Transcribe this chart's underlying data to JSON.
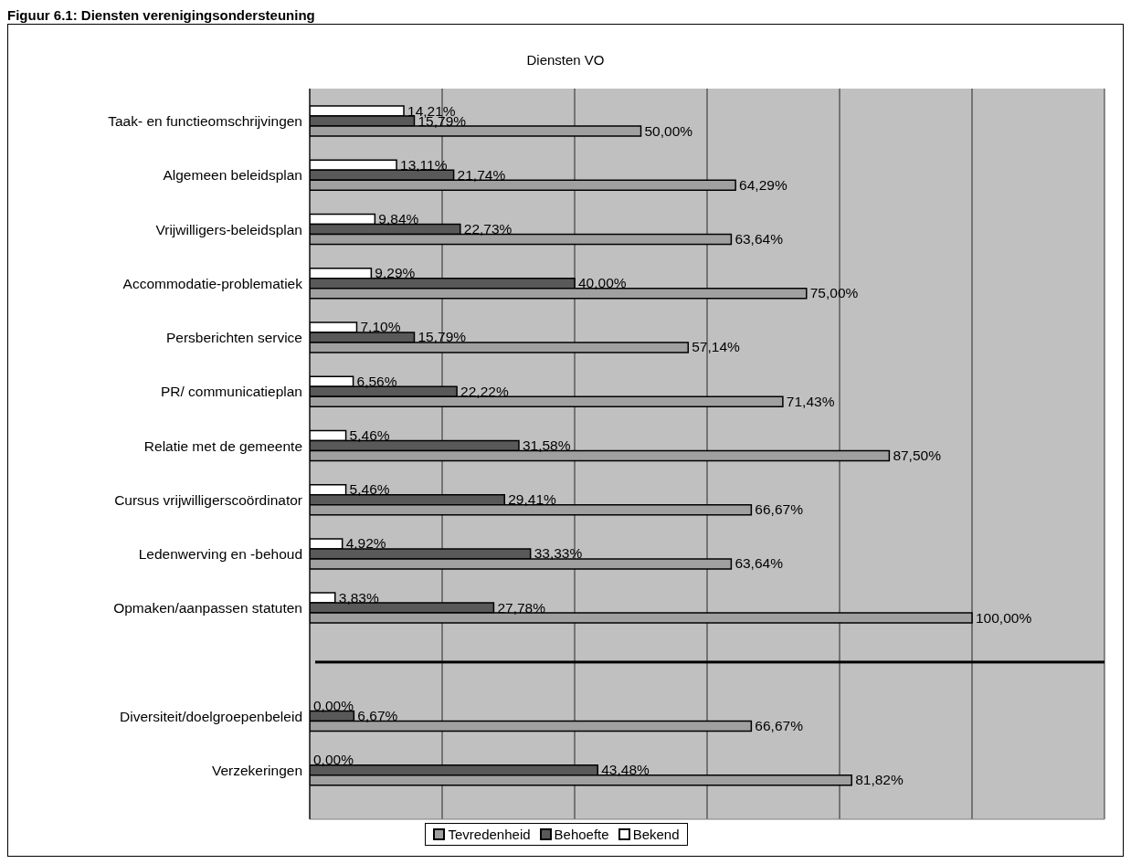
{
  "chart_data": {
    "type": "bar",
    "orientation": "horizontal",
    "title": "Diensten VO",
    "annotations": [
      "Figuur 6.1: Diensten verenigingsondersteuning"
    ],
    "categories": [
      "Taak- en functieomschrijvingen",
      "Algemeen beleidsplan",
      "Vrijwilligers-beleidsplan",
      "Accommodatie-problematiek",
      "Persberichten service",
      "PR/ communicatieplan",
      "Relatie met de gemeente",
      "Cursus vrijwilligerscoördinator",
      "Ledenwerving en -behoud",
      "Opmaken/aanpassen statuten",
      null,
      "Diversiteit/doelgroepenbeleid",
      "Verzekeringen"
    ],
    "series": [
      {
        "name": "Tevredenheid",
        "color": "#a0a0a0",
        "values": [
          50.0,
          64.29,
          63.64,
          75.0,
          57.14,
          71.43,
          87.5,
          66.67,
          63.64,
          100.0,
          null,
          66.67,
          81.82
        ],
        "value_labels": [
          "50,00%",
          "64,29%",
          "63,64%",
          "75,00%",
          "57,14%",
          "71,43%",
          "87,50%",
          "66,67%",
          "63,64%",
          "100,00%",
          null,
          "66,67%",
          "81,82%"
        ]
      },
      {
        "name": "Behoefte",
        "color": "#595959",
        "values": [
          15.79,
          21.74,
          22.73,
          40.0,
          15.79,
          22.22,
          31.58,
          29.41,
          33.33,
          27.78,
          null,
          6.67,
          43.48
        ],
        "value_labels": [
          "15,79%",
          "21,74%",
          "22,73%",
          "40,00%",
          "15,79%",
          "22,22%",
          "31,58%",
          "29,41%",
          "33,33%",
          "27,78%",
          null,
          "6,67%",
          "43,48%"
        ]
      },
      {
        "name": "Bekend",
        "color": "#ffffff",
        "values": [
          14.21,
          13.11,
          9.84,
          9.29,
          7.1,
          6.56,
          5.46,
          5.46,
          4.92,
          3.83,
          null,
          0.0,
          0.0
        ],
        "value_labels": [
          "14,21%",
          "13,11%",
          "9,84%",
          "9,29%",
          "7,10%",
          "6,56%",
          "5,46%",
          "5,46%",
          "4,92%",
          "3,83%",
          null,
          "0,00%",
          "0,00%"
        ]
      }
    ],
    "xlim": [
      0,
      120
    ],
    "grid": "x",
    "legend": "bottom",
    "tick_labels": "y"
  }
}
